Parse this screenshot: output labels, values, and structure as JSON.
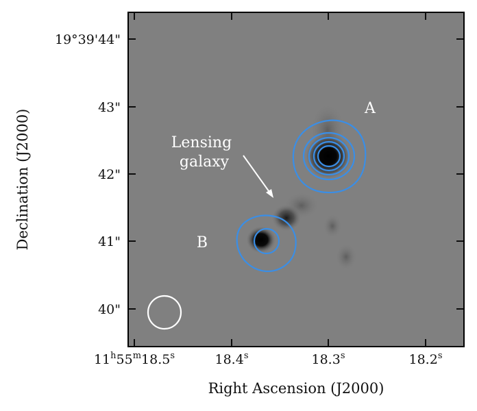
{
  "figure": {
    "x_axis_label": "Right Ascension (J2000)",
    "y_axis_label": "Declination (J2000)",
    "x_ticks": [
      {
        "h": "11",
        "m": "55",
        "s": "18.5",
        "unit": "s"
      },
      {
        "s": "18.4",
        "unit": "s"
      },
      {
        "s": "18.3",
        "unit": "s"
      },
      {
        "s": "18.2",
        "unit": "s"
      }
    ],
    "y_ticks": [
      "19°39'44\"",
      "43\"",
      "42\"",
      "41\"",
      "40\""
    ],
    "annotations": {
      "image_a": "A",
      "image_b": "B",
      "lensing_galaxy_line1": "Lensing",
      "lensing_galaxy_line2": "galaxy"
    },
    "colors": {
      "background_image": "#808080",
      "contours": "#3a8ee6",
      "annotation_text": "#ffffff",
      "beam": "#ffffff"
    }
  }
}
